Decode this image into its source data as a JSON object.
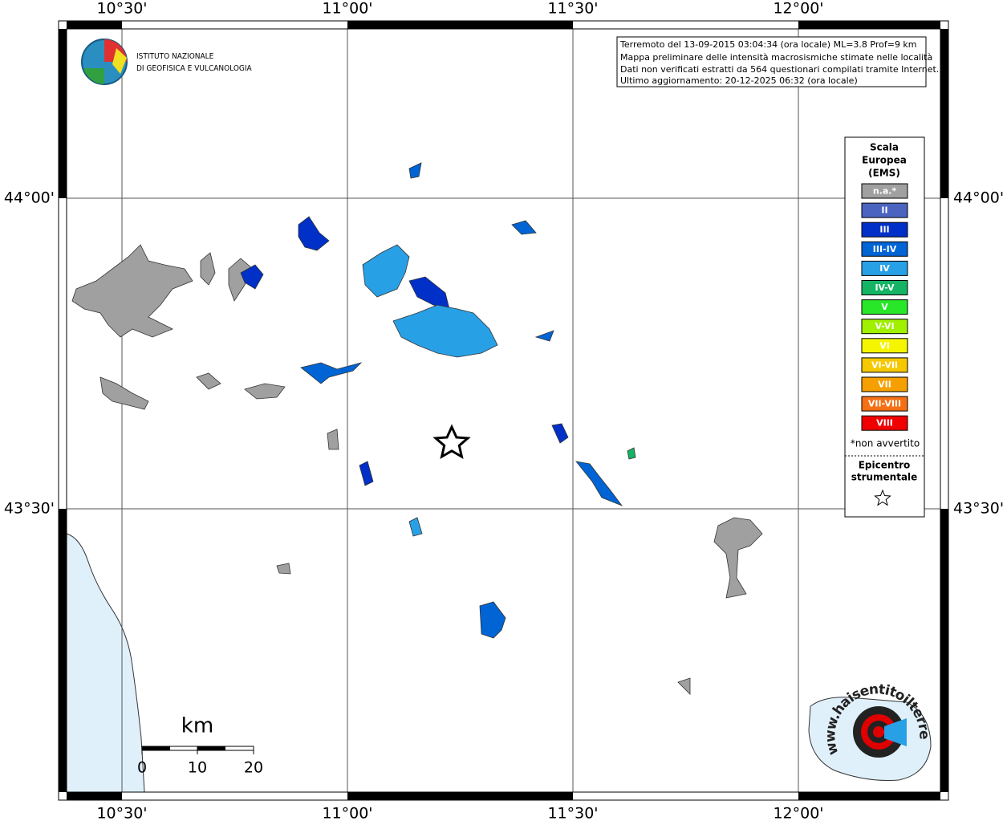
{
  "map": {
    "longitude_labels": [
      "10°30'",
      "11°00'",
      "11°30'",
      "12°00'"
    ],
    "latitude_labels": [
      "44°00'",
      "43°30'"
    ],
    "logo": [
      "ISTITUTO NAZIONALE",
      "DI GEOFISICA E VULCANOLOGIA"
    ],
    "info_box": [
      "Terremoto del 13-09-2015 03:04:34 (ora locale) ML=3.8 Prof=9 km",
      "Mappa preliminare delle intensità macrosismiche stimate nelle località",
      "Dati non verificati estratti da 564 questionari compilati tramite Internet.",
      "Ultimo aggiornamento: 20-12-2025 06:32 (ora locale)"
    ],
    "legend": {
      "title": [
        "Scala",
        "Europea",
        "(EMS)"
      ],
      "items": [
        {
          "label": "n.a.*",
          "color": "#a0a0a0"
        },
        {
          "label": "II",
          "color": "#4a64c0"
        },
        {
          "label": "III",
          "color": "#0030c8"
        },
        {
          "label": "III-IV",
          "color": "#0064d4"
        },
        {
          "label": "IV",
          "color": "#28a0e6"
        },
        {
          "label": "IV-V",
          "color": "#14b464"
        },
        {
          "label": "V",
          "color": "#28e628"
        },
        {
          "label": "V-VI",
          "color": "#a0f000"
        },
        {
          "label": "VI",
          "color": "#f5f500"
        },
        {
          "label": "VI-VII",
          "color": "#f5c800"
        },
        {
          "label": "VII",
          "color": "#f5a000"
        },
        {
          "label": "VII-VIII",
          "color": "#f57014"
        },
        {
          "label": "VIII",
          "color": "#f00000"
        }
      ],
      "note": "*non avvertito",
      "epicenter_title": [
        "Epicentro",
        "strumentale"
      ]
    },
    "scale_bar": {
      "unit": "km",
      "labels": [
        "0",
        "10",
        "20"
      ]
    },
    "watermark": "www.haisentitoilterremoto.it"
  }
}
